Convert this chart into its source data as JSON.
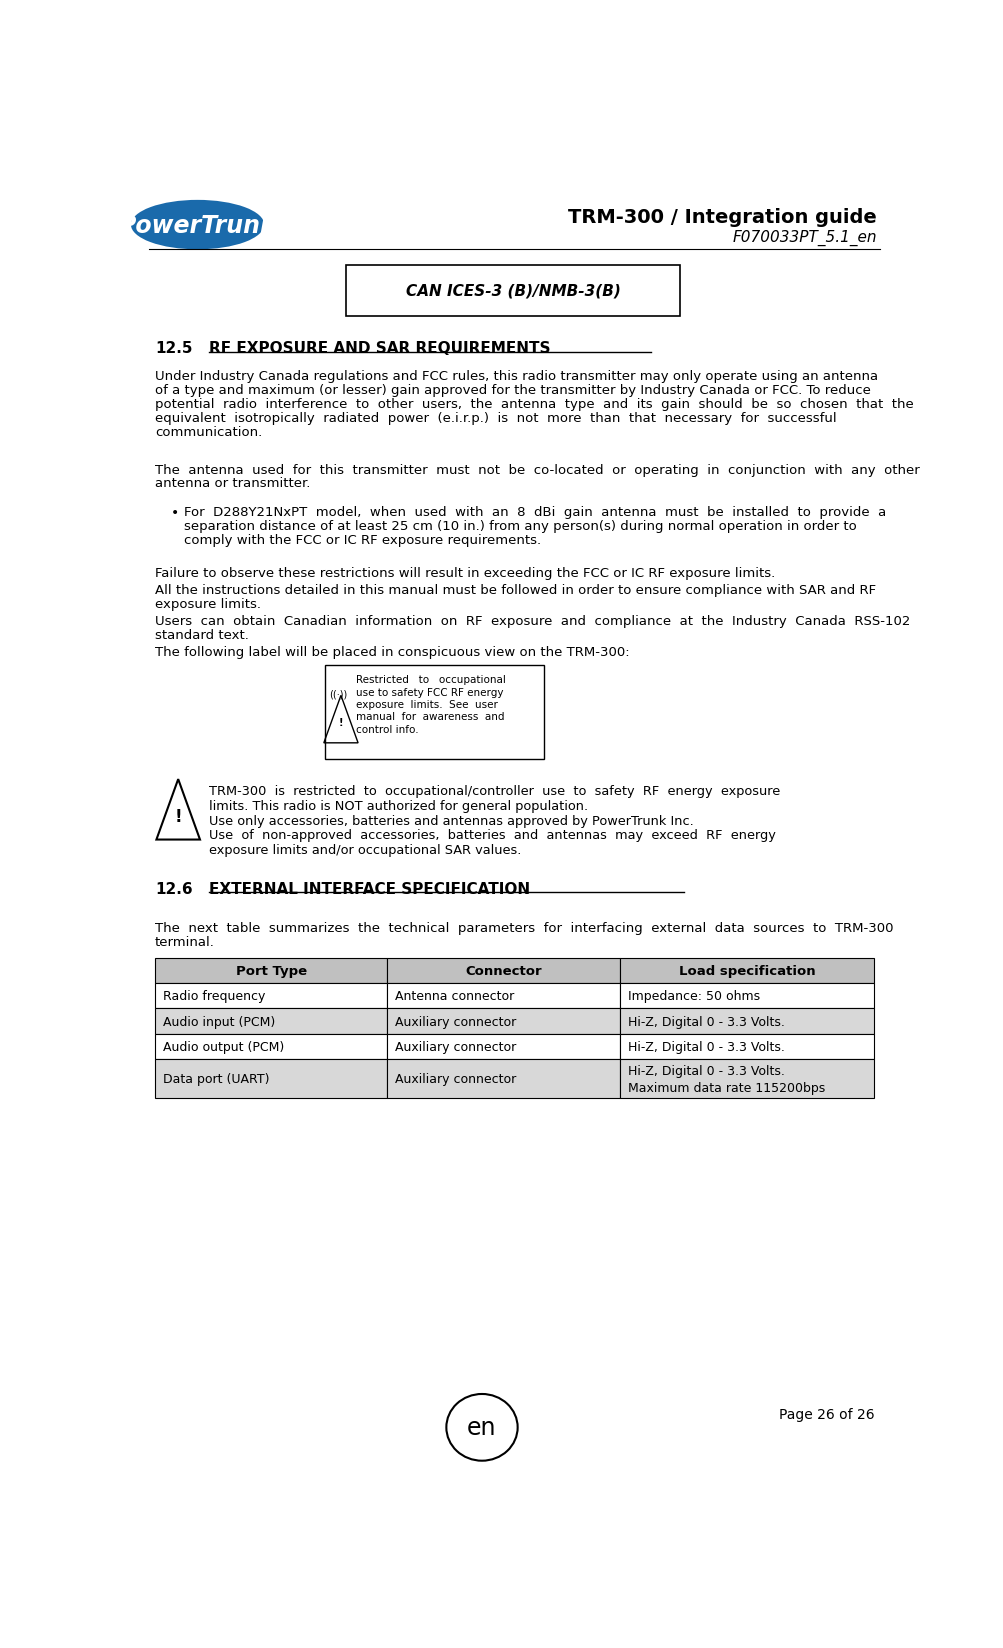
{
  "page_width": 10.04,
  "page_height": 16.49,
  "bg_color": "#ffffff",
  "header_title": "TRM-300 / Integration guide",
  "header_subtitle": "F070033PT_5.1_en",
  "can_box_text": "CAN ICES-3 (B)/NMB-3(B)",
  "section_12_5_num": "12.5",
  "section_12_5_title": "RF EXPOSURE AND SAR REQUIREMENTS",
  "section_12_6_num": "12.6",
  "section_12_6_title": "EXTERNAL INTERFACE SPECIFICATION",
  "para1_lines": [
    "Under Industry Canada regulations and FCC rules, this radio transmitter may only operate using an antenna",
    "of a type and maximum (or lesser) gain approved for the transmitter by Industry Canada or FCC. To reduce",
    "potential  radio  interference  to  other  users,  the  antenna  type  and  its  gain  should  be  so  chosen  that  the",
    "equivalent  isotropically  radiated  power  (e.i.r.p.)  is  not  more  than  that  necessary  for  successful",
    "communication."
  ],
  "para2_lines": [
    "The  antenna  used  for  this  transmitter  must  not  be  co-located  or  operating  in  conjunction  with  any  other",
    "antenna or transmitter."
  ],
  "bullet1_lines": [
    "For  D288Y21NxPT  model,  when  used  with  an  8  dBi  gain  antenna  must  be  installed  to  provide  a",
    "separation distance of at least 25 cm (10 in.) from any person(s) during normal operation in order to",
    "comply with the FCC or IC RF exposure requirements."
  ],
  "para3": "Failure to observe these restrictions will result in exceeding the FCC or IC RF exposure limits.",
  "para4_lines": [
    "All the instructions detailed in this manual must be followed in order to ensure compliance with SAR and RF",
    "exposure limits."
  ],
  "para5_lines": [
    "Users  can  obtain  Canadian  information  on  RF  exposure  and  compliance  at  the  Industry  Canada  RSS-102",
    "standard text."
  ],
  "para6": "The following label will be placed in conspicuous view on the TRM-300:",
  "label_box_lines": [
    "Restricted   to   occupational",
    "use to safety FCC RF energy",
    "exposure  limits.  See  user",
    "manual  for  awareness  and",
    "control info."
  ],
  "warning_lines": [
    "TRM-300  is  restricted  to  occupational/controller  use  to  safety  RF  energy  exposure",
    "limits. This radio is NOT authorized for general population.",
    "Use only accessories, batteries and antennas approved by PowerTrunk Inc.",
    "Use  of  non-approved  accessories,  batteries  and  antennas  may  exceed  RF  energy",
    "exposure limits and/or occupational SAR values."
  ],
  "para7_lines": [
    "The  next  table  summarizes  the  technical  parameters  for  interfacing  external  data  sources  to  TRM-300",
    "terminal."
  ],
  "table_headers": [
    "Port Type",
    "Connector",
    "Load specification"
  ],
  "table_rows": [
    [
      "Radio frequency",
      "Antenna connector",
      "Impedance: 50 ohms"
    ],
    [
      "Audio input (PCM)",
      "Auxiliary connector",
      "Hi-Z, Digital 0 - 3.3 Volts."
    ],
    [
      "Audio output (PCM)",
      "Auxiliary connector",
      "Hi-Z, Digital 0 - 3.3 Volts."
    ],
    [
      "Data port (UART)",
      "Auxiliary connector",
      "Hi-Z, Digital 0 - 3.3 Volts.\nMaximum data rate 115200bps"
    ]
  ],
  "footer_page": "Page 26 of 26",
  "footer_lang": "en",
  "blue_color": "#1a6aab",
  "table_header_bg": "#c0c0c0",
  "table_alt_bg": "#d8d8d8"
}
